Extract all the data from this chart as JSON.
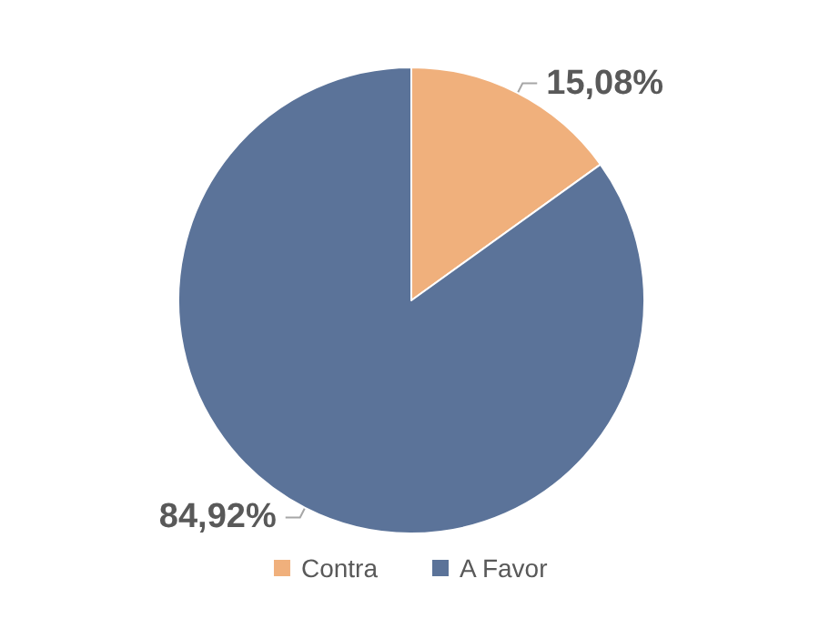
{
  "chart_data": {
    "type": "pie",
    "categories": [
      "Contra",
      "A Favor"
    ],
    "values": [
      15.08,
      84.92
    ],
    "colors": [
      "#f0b07c",
      "#5b7399"
    ],
    "value_labels": [
      "15,08%",
      "84,92%"
    ],
    "legend": "bottom"
  }
}
